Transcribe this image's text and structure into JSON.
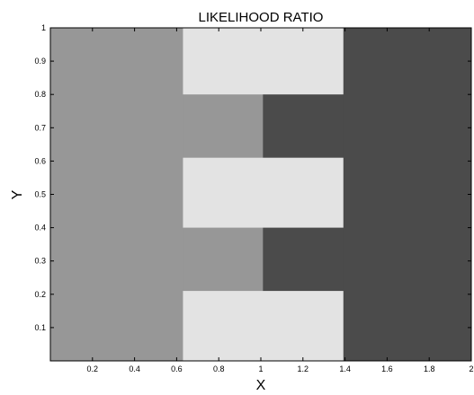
{
  "chart_data": {
    "type": "heatmap",
    "title": "LIKELIHOOD RATIO",
    "xlabel": "X",
    "ylabel": "Y",
    "xlim": [
      0,
      2
    ],
    "ylim": [
      0,
      1
    ],
    "xticks": [
      0.2,
      0.4,
      0.6,
      0.8,
      1,
      1.2,
      1.4,
      1.6,
      1.8,
      2
    ],
    "xtick_labels": [
      "0.2",
      "0.4",
      "0.6",
      "0.8",
      "1",
      "1.2",
      "1.4",
      "1.6",
      "1.8",
      "2"
    ],
    "yticks": [
      0.1,
      0.2,
      0.3,
      0.4,
      0.5,
      0.6,
      0.7,
      0.8,
      0.9,
      1
    ],
    "ytick_labels": [
      "0.1",
      "0.2",
      "0.3",
      "0.4",
      "0.5",
      "0.6",
      "0.7",
      "0.8",
      "0.9",
      "1"
    ],
    "grid": false,
    "levels": {
      "light": "#e3e3e3",
      "medium": "#979797",
      "dark": "#4b4b4b"
    },
    "regions": [
      {
        "x": [
          0,
          0.63
        ],
        "y": [
          0,
          1
        ],
        "level": "medium"
      },
      {
        "x": [
          0.63,
          1.01
        ],
        "y": [
          0,
          1
        ],
        "level": "medium"
      },
      {
        "x": [
          1.01,
          1.39
        ],
        "y": [
          0,
          1
        ],
        "level": "dark"
      },
      {
        "x": [
          1.39,
          2
        ],
        "y": [
          0,
          1
        ],
        "level": "dark"
      },
      {
        "x": [
          0.63,
          1.39
        ],
        "y": [
          0.8,
          1
        ],
        "level": "light"
      },
      {
        "x": [
          0.63,
          1.39
        ],
        "y": [
          0.4,
          0.61
        ],
        "level": "light"
      },
      {
        "x": [
          0.63,
          1.39
        ],
        "y": [
          0,
          0.21
        ],
        "level": "light"
      }
    ]
  }
}
